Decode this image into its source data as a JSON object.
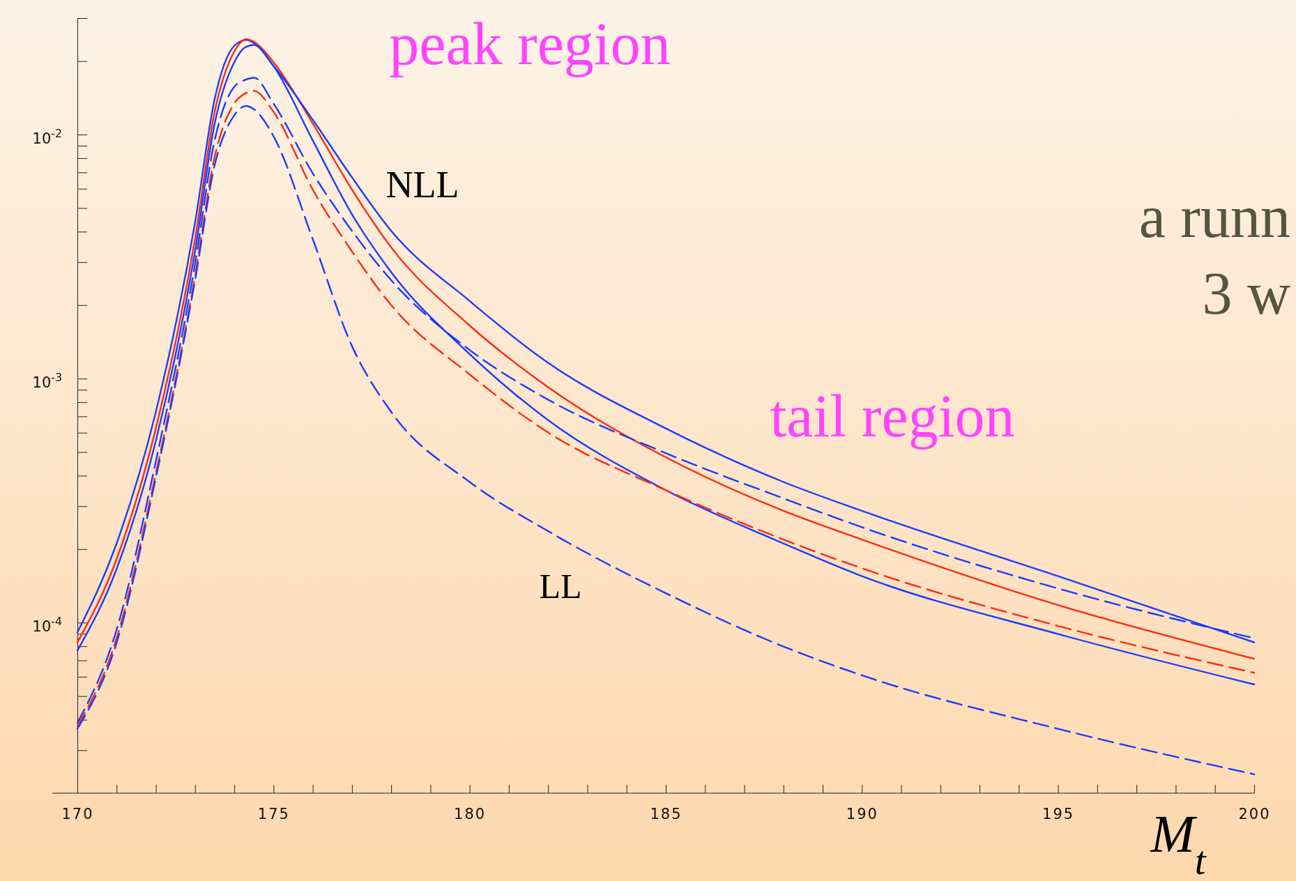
{
  "chart_data": {
    "type": "line",
    "xlabel": "M$_{t}$",
    "log": "y",
    "grid": false,
    "x": [
      170,
      171,
      172,
      173,
      173.5,
      174,
      174.3,
      174.5,
      175,
      176,
      177,
      178,
      180,
      182,
      185,
      188,
      190,
      195,
      200
    ],
    "xlim": [
      170,
      200
    ],
    "xticks": [
      170,
      {
        "value": 171,
        "label": null
      },
      {
        "value": 172,
        "label": null
      },
      {
        "value": 173,
        "label": null
      },
      {
        "value": 174,
        "label": null
      },
      175,
      {
        "value": 176,
        "label": null
      },
      {
        "value": 177,
        "label": null
      },
      {
        "value": 178,
        "label": null
      },
      {
        "value": 179,
        "label": null
      },
      180,
      {
        "value": 181,
        "label": null
      },
      {
        "value": 182,
        "label": null
      },
      {
        "value": 183,
        "label": null
      },
      {
        "value": 184,
        "label": null
      },
      185,
      {
        "value": 186,
        "label": null
      },
      {
        "value": 187,
        "label": null
      },
      {
        "value": 188,
        "label": null
      },
      {
        "value": 189,
        "label": null
      },
      190,
      {
        "value": 191,
        "label": null
      },
      {
        "value": 192,
        "label": null
      },
      {
        "value": 193,
        "label": null
      },
      {
        "value": 194,
        "label": null
      },
      195,
      {
        "value": 196,
        "label": null
      },
      {
        "value": 197,
        "label": null
      },
      {
        "value": 198,
        "label": null
      },
      {
        "value": 199,
        "label": null
      },
      200
    ],
    "ylim": [
      2e-05,
      0.03
    ],
    "yticks": [
      {
        "value": 3e-05,
        "label": null
      },
      {
        "value": 4e-05,
        "label": null
      },
      {
        "value": 5e-05,
        "label": null
      },
      {
        "value": 6e-05,
        "label": null
      },
      {
        "value": 7e-05,
        "label": null
      },
      {
        "value": 8e-05,
        "label": null
      },
      {
        "value": 9e-05,
        "label": null
      },
      {
        "value": 0.0001,
        "label": "10$^{-4}$"
      },
      {
        "value": 0.0002,
        "label": null
      },
      {
        "value": 0.0003,
        "label": null
      },
      {
        "value": 0.0004,
        "label": null
      },
      {
        "value": 0.0005,
        "label": null
      },
      {
        "value": 0.0006,
        "label": null
      },
      {
        "value": 0.0007,
        "label": null
      },
      {
        "value": 0.0008,
        "label": null
      },
      {
        "value": 0.0009,
        "label": null
      },
      {
        "value": 0.001,
        "label": "10$^{-3}$"
      },
      {
        "value": 0.002,
        "label": null
      },
      {
        "value": 0.003,
        "label": null
      },
      {
        "value": 0.004,
        "label": null
      },
      {
        "value": 0.005,
        "label": null
      },
      {
        "value": 0.006,
        "label": null
      },
      {
        "value": 0.007,
        "label": null
      },
      {
        "value": 0.008,
        "label": null
      },
      {
        "value": 0.009,
        "label": null
      },
      {
        "value": 0.01,
        "label": "10$^{-2}$"
      },
      {
        "value": 0.02,
        "label": null
      },
      {
        "value": 0.03,
        "label": null
      }
    ],
    "series": [
      {
        "color": "#1a3cff",
        "line_style": "solid",
        "values": [
          9.12e-05,
          0.000211,
          0.00073,
          0.00436,
          0.014,
          0.0231,
          0.0244,
          0.0237,
          0.0191,
          0.00947,
          0.00471,
          0.00273,
          0.00126,
          0.000676,
          0.000349,
          0.000211,
          0.000155,
          8.98e-05,
          5.58e-05
        ]
      },
      {
        "color": "#ff2a10",
        "line_style": "solid",
        "values": [
          8.3e-05,
          0.000182,
          0.000625,
          0.00373,
          0.0124,
          0.0219,
          0.0246,
          0.024,
          0.0198,
          0.0111,
          0.00595,
          0.00345,
          0.00165,
          0.000922,
          0.000476,
          0.000287,
          0.000219,
          0.000118,
          7.11e-05
        ]
      },
      {
        "color": "#1a3cff",
        "line_style": "solid",
        "values": [
          7.68e-05,
          0.000166,
          0.000556,
          0.00332,
          0.0111,
          0.0198,
          0.0229,
          0.0233,
          0.0191,
          0.0115,
          0.00668,
          0.00403,
          0.00208,
          0.00116,
          0.000625,
          0.000377,
          0.000287,
          0.000155,
          8.3e-05
        ]
      },
      {
        "color": "#1a3cff",
        "line_style": "dashed",
        "values": [
          3.88e-05,
          9.35e-05,
          0.000458,
          0.00295,
          0.00947,
          0.0157,
          0.0168,
          0.0171,
          0.0134,
          0.00694,
          0.00403,
          0.00253,
          0.00131,
          0.00082,
          0.000495,
          0.000323,
          0.000246,
          0.000138,
          8.63e-05
        ]
      },
      {
        "color": "#ff2a10",
        "line_style": "dashed",
        "values": [
          3.76e-05,
          8.63e-05,
          0.000408,
          0.00263,
          0.0081,
          0.0134,
          0.0148,
          0.0151,
          0.0124,
          0.00595,
          0.00332,
          0.002,
          0.00104,
          0.000601,
          0.000349,
          0.000219,
          0.000167,
          9.69e-05,
          6.23e-05
        ]
      },
      {
        "color": "#1a3cff",
        "line_style": "dashed",
        "values": [
          3.67e-05,
          8.27e-05,
          0.000392,
          0.00253,
          0.0075,
          0.012,
          0.0131,
          0.0127,
          0.00985,
          0.00373,
          0.00136,
          0.00073,
          0.000377,
          0.000237,
          0.000132,
          7.98e-05,
          6.08e-05,
          3.67e-05,
          2.39e-05
        ]
      }
    ],
    "annotations": [
      "peak region",
      "NLL",
      "tail region",
      "LL",
      "a runn",
      "3 w"
    ]
  }
}
